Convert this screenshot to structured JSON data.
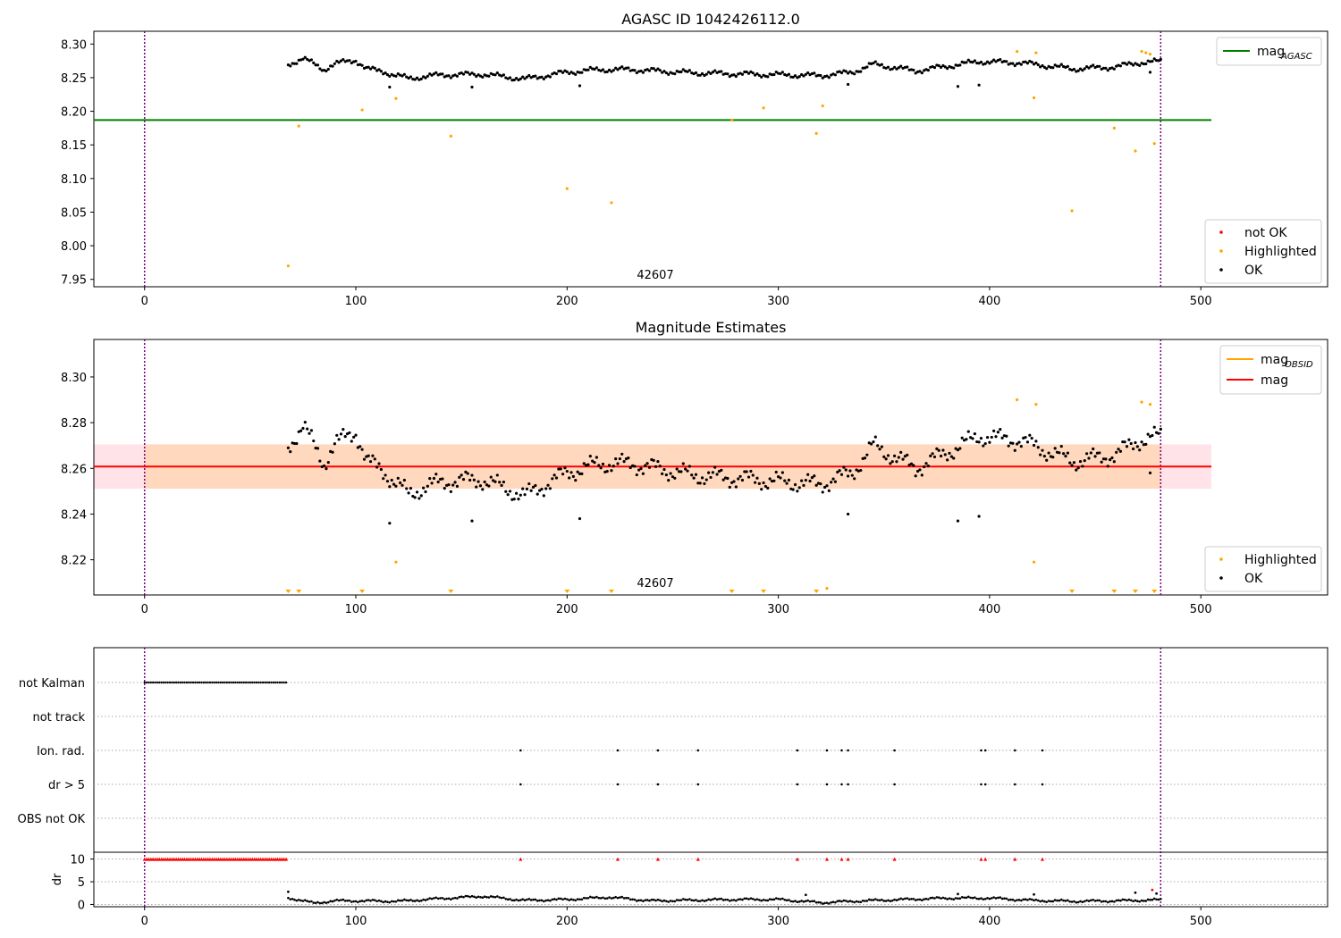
{
  "chart_data": [
    {
      "type": "scatter",
      "title": "AGASC ID 1042426112.0",
      "xlim": [
        -24,
        560
      ],
      "ylim": [
        7.939,
        8.319
      ],
      "xticks": [
        "0",
        "100",
        "200",
        "300",
        "400",
        "500"
      ],
      "yticks": [
        "7.95",
        "8.00",
        "8.05",
        "8.10",
        "8.15",
        "8.20",
        "8.25",
        "8.30"
      ],
      "obsid_label": "42607",
      "obsid_x": 240,
      "obs_bounds": [
        0,
        481
      ],
      "ref_line": {
        "name": "mag",
        "sub": "AGASC",
        "y": 8.187,
        "x": [
          -24,
          505
        ],
        "color": "#008000"
      },
      "legends": {
        "lines": [
          {
            "name": "mag",
            "sub": "AGASC",
            "color": "#008000"
          }
        ],
        "points": [
          {
            "name": "not OK",
            "color": "#ff0000"
          },
          {
            "name": "Highlighted",
            "color": "#ffa500"
          },
          {
            "name": "OK",
            "color": "#000000"
          }
        ]
      },
      "highlighted": {
        "x": [
          68,
          73,
          103,
          119,
          145,
          200,
          221,
          278,
          293,
          318,
          321,
          413,
          421,
          422,
          439,
          459,
          469,
          472,
          474,
          476,
          478
        ],
        "y": [
          7.97,
          8.178,
          8.202,
          8.219,
          8.163,
          8.085,
          8.064,
          8.187,
          8.205,
          8.167,
          8.208,
          8.289,
          8.22,
          8.287,
          8.052,
          8.175,
          8.141,
          8.289,
          8.287,
          8.285,
          8.152
        ]
      },
      "ok_profile": {
        "x": [
          68,
          75,
          80,
          85,
          90,
          95,
          100,
          105,
          112,
          118,
          125,
          140,
          160,
          180,
          200,
          215,
          230,
          260,
          290,
          320,
          335,
          345,
          365,
          395,
          415,
          440,
          460,
          470,
          480
        ],
        "y": [
          8.27,
          8.278,
          8.271,
          8.262,
          8.27,
          8.274,
          8.276,
          8.263,
          8.26,
          8.254,
          8.249,
          8.254,
          8.255,
          8.248,
          8.258,
          8.262,
          8.262,
          8.257,
          8.255,
          8.253,
          8.258,
          8.27,
          8.26,
          8.274,
          8.272,
          8.263,
          8.266,
          8.272,
          8.274
        ]
      },
      "ok_outliers": {
        "x": [
          116,
          155,
          206,
          333,
          385,
          395,
          476
        ],
        "y": [
          8.236,
          8.236,
          8.238,
          8.24,
          8.237,
          8.239,
          8.258
        ]
      }
    },
    {
      "type": "scatter",
      "title": "Magnitude Estimates",
      "xlim": [
        -24,
        560
      ],
      "ylim": [
        8.2046,
        8.3164
      ],
      "xticks": [
        "0",
        "100",
        "200",
        "300",
        "400",
        "500"
      ],
      "yticks": [
        "8.22",
        "8.24",
        "8.26",
        "8.28",
        "8.30"
      ],
      "obsid_label": "42607",
      "obsid_x": 240,
      "obs_bounds": [
        0,
        481
      ],
      "mag_line": {
        "name": "mag",
        "y": 8.2608,
        "x": [
          -24,
          505
        ],
        "color": "#ff0000"
      },
      "band_outer": [
        8.2511,
        8.2705
      ],
      "band_inner": [
        8.2511,
        8.2705
      ],
      "legends": {
        "lines": [
          {
            "name": "mag",
            "sub": "OBSID",
            "color": "#ffa500"
          },
          {
            "name": "mag",
            "sub": "",
            "color": "#ff0000"
          }
        ],
        "points": [
          {
            "name": "Highlighted",
            "color": "#ffa500"
          },
          {
            "name": "OK",
            "color": "#000000"
          }
        ]
      },
      "highlighted": {
        "x": [
          119,
          413,
          421,
          422,
          472,
          476,
          323
        ],
        "y": [
          8.219,
          8.29,
          8.219,
          8.288,
          8.289,
          8.288,
          8.2075
        ]
      },
      "lower_markers": [
        68,
        73,
        103,
        145,
        200,
        221,
        278,
        293,
        318,
        439,
        459,
        469,
        478
      ],
      "ok_profile": {
        "x": [
          68,
          75,
          80,
          85,
          90,
          95,
          100,
          105,
          112,
          118,
          125,
          140,
          160,
          180,
          200,
          215,
          230,
          260,
          290,
          320,
          335,
          345,
          365,
          395,
          415,
          440,
          460,
          470,
          480
        ],
        "y": [
          8.27,
          8.278,
          8.271,
          8.262,
          8.27,
          8.274,
          8.276,
          8.263,
          8.26,
          8.254,
          8.249,
          8.254,
          8.255,
          8.248,
          8.258,
          8.262,
          8.262,
          8.257,
          8.255,
          8.253,
          8.258,
          8.27,
          8.26,
          8.274,
          8.272,
          8.263,
          8.266,
          8.272,
          8.274
        ]
      },
      "ok_outliers": {
        "x": [
          116,
          155,
          206,
          333,
          385,
          395,
          476
        ],
        "y": [
          8.236,
          8.237,
          8.238,
          8.24,
          8.237,
          8.239,
          8.258
        ]
      }
    },
    {
      "type": "scatter",
      "title": "",
      "xlim": [
        -24,
        560
      ],
      "xticks": [
        "0",
        "100",
        "200",
        "300",
        "400",
        "500"
      ],
      "obs_bounds": [
        0,
        481
      ],
      "flag_rows": [
        "not Kalman",
        "not track",
        "Ion. rad.",
        "dr > 5",
        "OBS not OK"
      ],
      "flags": {
        "not_kalman_range": [
          0,
          67
        ],
        "ion_rad": [
          178,
          224,
          243,
          262,
          309,
          323,
          330,
          333,
          355,
          396,
          398,
          412,
          425
        ],
        "dr_gt_5": [
          178,
          224,
          243,
          262,
          309,
          323,
          330,
          333,
          355,
          396,
          398,
          412,
          425
        ]
      },
      "dr": {
        "ylabel": "dr",
        "ylim": [
          -0.5,
          11.5
        ],
        "yticks": [
          "0",
          "5",
          "10"
        ],
        "clipped_y": 10,
        "clipped_ranges": [
          [
            0,
            67
          ]
        ],
        "clipped_points": [
          178,
          224,
          243,
          262,
          309,
          323,
          330,
          333,
          355,
          396,
          398,
          412,
          425
        ],
        "profile": {
          "x": [
            68,
            75,
            80,
            90,
            100,
            120,
            140,
            160,
            180,
            200,
            220,
            240,
            280,
            300,
            320,
            340,
            380,
            400,
            420,
            440,
            460,
            470,
            480
          ],
          "y": [
            1.5,
            0.8,
            0.3,
            0.8,
            0.8,
            0.7,
            1.3,
            1.8,
            0.9,
            1.1,
            1.6,
            0.8,
            1.1,
            1.1,
            0.4,
            0.8,
            1.4,
            1.4,
            0.9,
            0.7,
            0.8,
            0.9,
            1.0
          ]
        },
        "outliers": {
          "x": [
            68,
            313,
            385,
            421,
            469,
            477,
            479
          ],
          "y": [
            2.8,
            2.1,
            2.3,
            2.2,
            2.6,
            3.2,
            2.4
          ],
          "colors": [
            "#000000",
            "#000000",
            "#000000",
            "#000000",
            "#000000",
            "#ff0000",
            "#000000"
          ]
        }
      }
    }
  ]
}
